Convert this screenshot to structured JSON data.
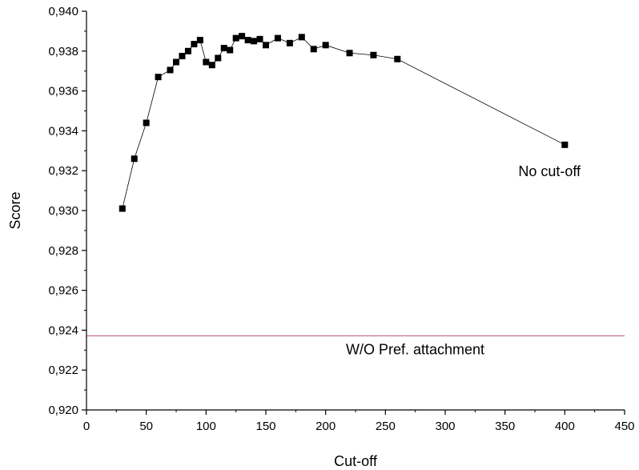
{
  "chart_data": {
    "type": "scatter",
    "xlabel": "Cut-off",
    "ylabel": "Score",
    "xlim": [
      0,
      450
    ],
    "ylim": [
      0.92,
      0.94
    ],
    "x_ticks": [
      0,
      50,
      100,
      150,
      200,
      250,
      300,
      350,
      400,
      450
    ],
    "y_ticks": [
      0.92,
      0.922,
      0.924,
      0.926,
      0.928,
      0.93,
      0.932,
      0.934,
      0.936,
      0.938,
      0.94
    ],
    "x_tick_labels": [
      "0",
      "50",
      "100",
      "150",
      "200",
      "250",
      "300",
      "350",
      "400",
      "450"
    ],
    "y_tick_labels": [
      "0,920",
      "0,922",
      "0,924",
      "0,926",
      "0,928",
      "0,930",
      "0,932",
      "0,934",
      "0,936",
      "0,938",
      "0,940"
    ],
    "grid": false,
    "series": [
      {
        "marker": "square",
        "line": true,
        "color": "#000000",
        "x": [
          30,
          40,
          50,
          60,
          70,
          75,
          80,
          85,
          90,
          95,
          100,
          105,
          110,
          115,
          120,
          125,
          130,
          135,
          140,
          145,
          150,
          160,
          170,
          180,
          190,
          200,
          220,
          240,
          260,
          400
        ],
        "y": [
          0.9301,
          0.9326,
          0.9344,
          0.9367,
          0.93705,
          0.93745,
          0.93775,
          0.938,
          0.93835,
          0.93855,
          0.93745,
          0.9373,
          0.93765,
          0.93815,
          0.93805,
          0.93865,
          0.93875,
          0.93855,
          0.9385,
          0.9386,
          0.9383,
          0.93865,
          0.9384,
          0.9387,
          0.9381,
          0.9383,
          0.9379,
          0.9378,
          0.9376,
          0.9333
        ]
      }
    ],
    "reference_line": {
      "y": 0.92372,
      "color": "#c0506a",
      "label": "W/O Pref. attachment"
    },
    "annotations": [
      {
        "text": "No cut-off",
        "x": 400,
        "y": 0.9333
      }
    ]
  }
}
